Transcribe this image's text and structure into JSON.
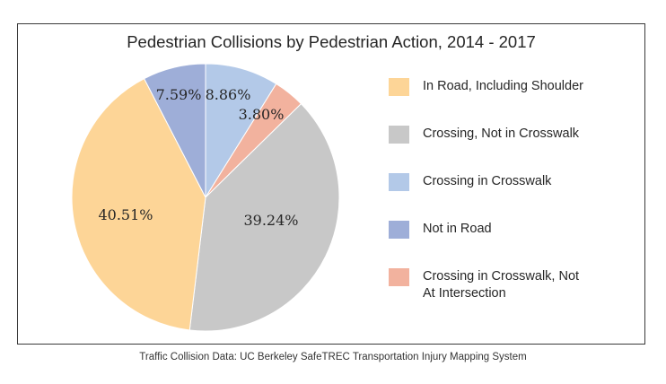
{
  "chart_data": {
    "type": "pie",
    "title": "Pedestrian Collisions by Pedestrian Action, 2014 - 2017",
    "start_angle_deg": 0,
    "direction": "clockwise",
    "slices": [
      {
        "label": "Crossing in Crosswalk",
        "value": 8.86,
        "value_label": "8.86%",
        "color": "#b3c9e8"
      },
      {
        "label": "Crossing in Crosswalk, Not At Intersection",
        "value": 3.8,
        "value_label": "3.80%",
        "color": "#f2b29e"
      },
      {
        "label": "Crossing, Not in Crosswalk",
        "value": 39.24,
        "value_label": "39.24%",
        "color": "#c8c8c8"
      },
      {
        "label": "In Road, Including Shoulder",
        "value": 40.51,
        "value_label": "40.51%",
        "color": "#fdd597"
      },
      {
        "label": "Not in Road",
        "value": 7.59,
        "value_label": "7.59%",
        "color": "#9eaed8"
      }
    ],
    "legend": [
      {
        "label": "In Road, Including Shoulder",
        "color": "#fdd597"
      },
      {
        "label": "Crossing, Not in Crosswalk",
        "color": "#c8c8c8"
      },
      {
        "label": "Crossing in Crosswalk",
        "color": "#b3c9e8"
      },
      {
        "label": "Not in Road",
        "color": "#9eaed8"
      },
      {
        "label": "Crossing in Crosswalk, Not At Intersection",
        "color": "#f2b29e"
      }
    ],
    "legend_position": "right"
  },
  "caption": "Traffic Collision Data: UC Berkeley SafeTREC Transportation Injury Mapping System"
}
